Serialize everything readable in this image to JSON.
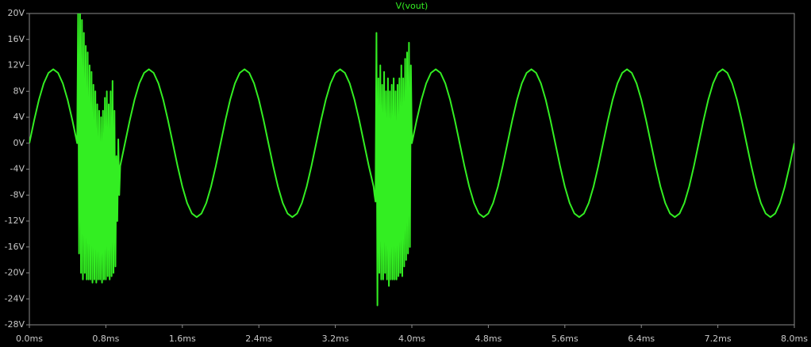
{
  "chart_data": {
    "type": "line",
    "title": "V(vout)",
    "grid": false,
    "xlim": [
      0,
      8
    ],
    "ylim": [
      -28,
      20
    ],
    "xticks": [
      {
        "value": 0,
        "label": "0.0ms"
      },
      {
        "value": 0.8,
        "label": "0.8ms"
      },
      {
        "value": 1.6,
        "label": "1.6ms"
      },
      {
        "value": 2.4,
        "label": "2.4ms"
      },
      {
        "value": 3.2,
        "label": "3.2ms"
      },
      {
        "value": 4,
        "label": "4.0ms"
      },
      {
        "value": 4.8,
        "label": "4.8ms"
      },
      {
        "value": 5.6,
        "label": "5.6ms"
      },
      {
        "value": 6.4,
        "label": "6.4ms"
      },
      {
        "value": 7.2,
        "label": "7.2ms"
      },
      {
        "value": 8,
        "label": "8.0ms"
      }
    ],
    "yticks": [
      {
        "value": 20,
        "label": "20V"
      },
      {
        "value": 16,
        "label": "16V"
      },
      {
        "value": 12,
        "label": "12V"
      },
      {
        "value": 8,
        "label": "8V"
      },
      {
        "value": 4,
        "label": "4V"
      },
      {
        "value": 0,
        "label": "0V"
      },
      {
        "value": -4,
        "label": "-4V"
      },
      {
        "value": -8,
        "label": "-8V"
      },
      {
        "value": -12,
        "label": "-12V"
      },
      {
        "value": -16,
        "label": "-16V"
      },
      {
        "value": -20,
        "label": "-20V"
      },
      {
        "value": -24,
        "label": "-24V"
      },
      {
        "value": -28,
        "label": "-28V"
      }
    ],
    "x": [
      0,
      0.05,
      0.1,
      0.15,
      0.2,
      0.25,
      0.3,
      0.35,
      0.4,
      0.45,
      0.5,
      0.51,
      0.52,
      0.53,
      0.54,
      0.55,
      0.56,
      0.57,
      0.58,
      0.59,
      0.6,
      0.61,
      0.62,
      0.63,
      0.64,
      0.65,
      0.66,
      0.67,
      0.68,
      0.69,
      0.7,
      0.71,
      0.72,
      0.73,
      0.74,
      0.75,
      0.76,
      0.77,
      0.78,
      0.79,
      0.8,
      0.81,
      0.82,
      0.83,
      0.84,
      0.85,
      0.86,
      0.87,
      0.88,
      0.89,
      0.9,
      0.91,
      0.92,
      0.93,
      0.94,
      0.95,
      1,
      1.05,
      1.1,
      1.15,
      1.2,
      1.25,
      1.3,
      1.35,
      1.4,
      1.45,
      1.5,
      1.55,
      1.6,
      1.65,
      1.7,
      1.75,
      1.8,
      1.85,
      1.9,
      1.95,
      2,
      2.05,
      2.1,
      2.15,
      2.2,
      2.25,
      2.3,
      2.35,
      2.4,
      2.45,
      2.5,
      2.55,
      2.6,
      2.65,
      2.7,
      2.75,
      2.8,
      2.85,
      2.9,
      2.95,
      3,
      3.05,
      3.1,
      3.15,
      3.2,
      3.25,
      3.3,
      3.35,
      3.4,
      3.45,
      3.5,
      3.55,
      3.6,
      3.61,
      3.62,
      3.63,
      3.64,
      3.65,
      3.66,
      3.67,
      3.68,
      3.69,
      3.7,
      3.71,
      3.72,
      3.73,
      3.74,
      3.75,
      3.76,
      3.77,
      3.78,
      3.79,
      3.8,
      3.81,
      3.82,
      3.83,
      3.84,
      3.85,
      3.86,
      3.87,
      3.88,
      3.89,
      3.9,
      3.91,
      3.92,
      3.93,
      3.94,
      3.95,
      3.96,
      3.97,
      3.98,
      3.99,
      4,
      4.05,
      4.1,
      4.15,
      4.2,
      4.25,
      4.3,
      4.35,
      4.4,
      4.45,
      4.5,
      4.55,
      4.6,
      4.65,
      4.7,
      4.75,
      4.8,
      4.85,
      4.9,
      4.95,
      5,
      5.05,
      5.1,
      5.15,
      5.2,
      5.25,
      5.3,
      5.35,
      5.4,
      5.45,
      5.5,
      5.55,
      5.6,
      5.65,
      5.7,
      5.75,
      5.8,
      5.85,
      5.9,
      5.95,
      6,
      6.05,
      6.1,
      6.15,
      6.2,
      6.25,
      6.3,
      6.35,
      6.4,
      6.45,
      6.5,
      6.55,
      6.6,
      6.65,
      6.7,
      6.75,
      6.8,
      6.85,
      6.9,
      6.95,
      7,
      7.05,
      7.1,
      7.15,
      7.2,
      7.25,
      7.3,
      7.35,
      7.4,
      7.45,
      7.5,
      7.55,
      7.6,
      7.65,
      7.7,
      7.75,
      7.8,
      7.85,
      7.9,
      7.95,
      8
    ],
    "series": [
      {
        "name": "V(vout)",
        "color": "#33ee22",
        "values": [
          0,
          3.52,
          6.7,
          9.22,
          10.84,
          11.4,
          10.84,
          9.22,
          6.7,
          3.52,
          0,
          20,
          -17,
          20,
          -20,
          19,
          -21,
          17,
          -20,
          15,
          -21,
          14,
          -21,
          12,
          -21,
          11,
          -21.5,
          9,
          -21,
          8,
          -21.5,
          6,
          -21,
          5,
          -21,
          4,
          -21.5,
          5,
          -21,
          7,
          -21,
          8,
          -20.5,
          6,
          -21,
          8,
          -20.5,
          9.6,
          -20,
          5,
          -19,
          -2,
          -12,
          0.6,
          -8,
          -3.52,
          0,
          3.52,
          6.7,
          9.22,
          10.84,
          11.4,
          10.84,
          9.22,
          6.7,
          3.52,
          0,
          -3.52,
          -6.7,
          -9.22,
          -10.84,
          -11.4,
          -10.84,
          -9.22,
          -6.7,
          -3.52,
          0,
          3.52,
          6.7,
          9.22,
          10.84,
          11.4,
          10.84,
          9.22,
          6.7,
          3.52,
          0,
          -3.52,
          -6.7,
          -9.22,
          -10.84,
          -11.4,
          -10.84,
          -9.22,
          -6.7,
          -3.52,
          0,
          3.52,
          6.7,
          9.22,
          10.84,
          11.4,
          10.84,
          9.22,
          6.7,
          3.52,
          0,
          -3.52,
          -6.7,
          -8,
          -9,
          17,
          -25,
          10,
          -20,
          12,
          -21,
          9,
          -21,
          11,
          -20,
          8,
          -21,
          10,
          -22,
          8,
          -21,
          9,
          -21,
          10,
          -21,
          8,
          -21,
          9,
          -20.5,
          10,
          -20,
          12,
          -20.5,
          10,
          -19,
          13,
          -18,
          14,
          -17,
          15.5,
          -16,
          12,
          0,
          3.52,
          6.7,
          9.22,
          10.84,
          11.4,
          10.84,
          9.22,
          6.7,
          3.52,
          0,
          -3.52,
          -6.7,
          -9.22,
          -10.84,
          -11.4,
          -10.84,
          -9.22,
          -6.7,
          -3.52,
          0,
          3.52,
          6.7,
          9.22,
          10.84,
          11.4,
          10.84,
          9.22,
          6.7,
          3.52,
          0,
          -3.52,
          -6.7,
          -9.22,
          -10.84,
          -11.4,
          -10.84,
          -9.22,
          -6.7,
          -3.52,
          0,
          3.52,
          6.7,
          9.22,
          10.84,
          11.4,
          10.84,
          9.22,
          6.7,
          3.52,
          0,
          -3.52,
          -6.7,
          -9.22,
          -10.84,
          -11.4,
          -10.84,
          -9.22,
          -6.7,
          -3.52,
          0,
          3.52,
          6.7,
          9.22,
          10.84,
          11.4,
          10.84,
          9.22,
          6.7,
          3.52,
          0,
          -3.52,
          -6.7,
          -9.22,
          -10.84,
          -11.4,
          -10.84,
          -9.22,
          -6.7,
          -3.52,
          0
        ]
      }
    ]
  }
}
